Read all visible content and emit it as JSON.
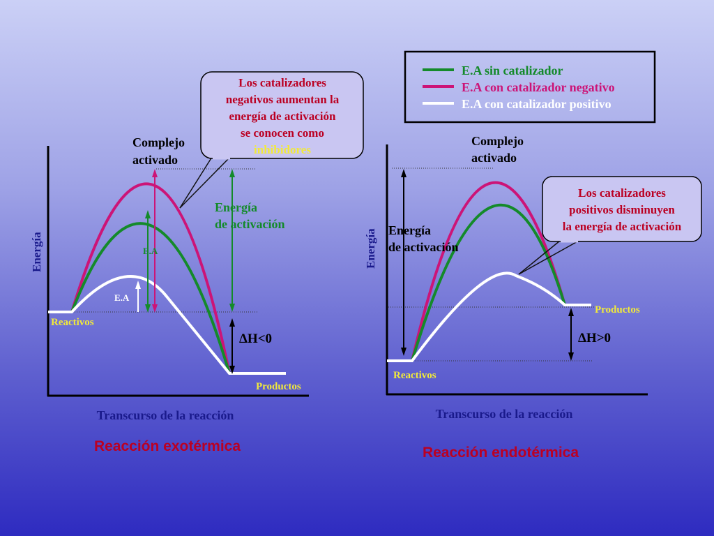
{
  "colors": {
    "green": "#148a2a",
    "magenta": "#cc1477",
    "white": "#ffffff",
    "axis": "#000000",
    "red_text": "#bb0022",
    "blue_text": "#1a1a8c",
    "highlight": "#f2ea3a",
    "callout_fill": "#c9c6f2"
  },
  "legend": {
    "items": [
      {
        "label": "E.A sin catalizador",
        "color": "#148a2a"
      },
      {
        "label": "E.A con catalizador negativo",
        "color": "#cc1477"
      },
      {
        "label": "E.A con catalizador positivo",
        "color": "#ffffff"
      }
    ]
  },
  "left": {
    "ylabel": "Energía",
    "xlabel": "Transcurso de la reacción",
    "title": "Reacción exotérmica",
    "complejo": [
      "Complejo",
      "activado"
    ],
    "energia_act": [
      "Energía",
      "de activación"
    ],
    "ea_upper": "E.A",
    "ea_lower": "E.A",
    "reactivos": "Reactivos",
    "productos": "Productos",
    "delta_h": "ΔH<0",
    "callout": [
      "Los catalizadores",
      "negativos aumentan la",
      "energía de activación",
      "se conocen como",
      "inhibidores"
    ]
  },
  "right": {
    "ylabel": "Energía",
    "xlabel": "Transcurso de la reacción",
    "title": "Reacción endotérmica",
    "complejo": [
      "Complejo",
      "activado"
    ],
    "energia_act": [
      "Energía",
      "de activación"
    ],
    "reactivos": "Reactivos",
    "productos": "Productos",
    "delta_h": "ΔH>0",
    "callout": [
      "Los catalizadores",
      "positivos disminuyen",
      "la energía de activación"
    ]
  }
}
